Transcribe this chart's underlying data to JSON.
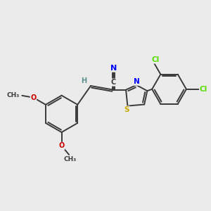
{
  "background_color": "#ebebeb",
  "bond_color": "#3a3a3a",
  "atom_colors": {
    "N": "#0000ff",
    "S": "#ccaa00",
    "O": "#cc0000",
    "Cl": "#55dd00",
    "H": "#5a9090",
    "C": "#3a3a3a"
  },
  "bond_width": 1.4,
  "figsize": [
    3.0,
    3.0
  ],
  "dpi": 100,
  "xlim": [
    0,
    10
  ],
  "ylim": [
    0,
    10
  ]
}
